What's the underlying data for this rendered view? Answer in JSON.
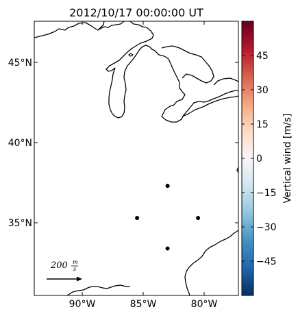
{
  "title": "2012/10/17 00:00:00 UT",
  "map": {
    "lat_ticks": [
      "45°N",
      "40°N",
      "35°N"
    ],
    "lon_ticks": [
      "90°W",
      "85°W",
      "80°W"
    ],
    "coastline_color": "#000000",
    "stations": [
      {
        "lon": -83.0,
        "lat": 37.3
      },
      {
        "lon": -85.5,
        "lat": 35.3
      },
      {
        "lon": -80.5,
        "lat": 35.3
      },
      {
        "lon": -83.0,
        "lat": 33.4
      }
    ]
  },
  "reference_arrow": {
    "value": "200",
    "unit_numerator": "m",
    "unit_denominator": "s"
  },
  "colorbar": {
    "label": "Vertical wind [m/s]",
    "ticks": [
      "45",
      "30",
      "15",
      "0",
      "−15",
      "−30",
      "−45"
    ],
    "range": [
      -60,
      60
    ],
    "colormap": "RdBu_r",
    "colors": [
      "#053061",
      "#2166ac",
      "#4393c3",
      "#92c5de",
      "#d1e5f0",
      "#f7f7f7",
      "#fddbc7",
      "#f4a582",
      "#d6604d",
      "#b2182b",
      "#67001f"
    ]
  }
}
